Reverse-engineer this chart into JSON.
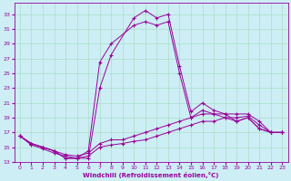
{
  "xlabel": "Windchill (Refroidissement éolien,°C)",
  "background_color": "#cdeef5",
  "grid_color": "#aaddc8",
  "line_color": "#990099",
  "x_ticks": [
    0,
    1,
    2,
    3,
    4,
    5,
    6,
    7,
    8,
    9,
    10,
    11,
    12,
    13,
    14,
    15,
    16,
    17,
    18,
    19,
    20,
    21,
    22,
    23
  ],
  "y_ticks": [
    13,
    15,
    17,
    19,
    21,
    23,
    25,
    27,
    29,
    31,
    33
  ],
  "xlim": [
    -0.5,
    23.5
  ],
  "ylim": [
    13,
    34.5
  ],
  "lines": [
    {
      "x": [
        0,
        1,
        2,
        3,
        4,
        5,
        6,
        7,
        8,
        10,
        11,
        12,
        13,
        14,
        15,
        16,
        17,
        18,
        19,
        20,
        21,
        22,
        23
      ],
      "y": [
        16.5,
        15.5,
        15.0,
        14.5,
        13.5,
        13.5,
        13.5,
        23.0,
        27.5,
        32.5,
        33.5,
        32.5,
        33.0,
        26.0,
        19.8,
        21.0,
        20.0,
        19.5,
        18.5,
        19.0,
        17.5,
        17.0,
        17.0
      ]
    },
    {
      "x": [
        0,
        1,
        2,
        3,
        4,
        5,
        6,
        7,
        8,
        10,
        11,
        12,
        13,
        14,
        15,
        16,
        17,
        18,
        19,
        20,
        21,
        22,
        23
      ],
      "y": [
        16.5,
        15.5,
        15.0,
        14.5,
        13.5,
        13.5,
        14.5,
        26.5,
        29.0,
        31.5,
        32.0,
        31.5,
        32.0,
        25.0,
        19.0,
        20.0,
        19.5,
        19.0,
        18.5,
        19.0,
        17.5,
        17.0,
        17.0
      ]
    },
    {
      "x": [
        0,
        1,
        2,
        3,
        4,
        5,
        6,
        7,
        8,
        9,
        10,
        11,
        12,
        13,
        14,
        15,
        16,
        17,
        18,
        19,
        20,
        21,
        22,
        23
      ],
      "y": [
        16.5,
        15.5,
        15.0,
        14.5,
        14.0,
        13.8,
        14.2,
        15.5,
        16.0,
        16.0,
        16.5,
        17.0,
        17.5,
        18.0,
        18.5,
        19.0,
        19.5,
        19.5,
        19.5,
        19.5,
        19.5,
        18.5,
        17.0,
        17.0
      ]
    },
    {
      "x": [
        0,
        1,
        2,
        3,
        4,
        5,
        6,
        7,
        8,
        9,
        10,
        11,
        12,
        13,
        14,
        15,
        16,
        17,
        18,
        19,
        20,
        21,
        22,
        23
      ],
      "y": [
        16.5,
        15.3,
        14.8,
        14.2,
        13.8,
        13.5,
        13.8,
        15.0,
        15.3,
        15.5,
        15.8,
        16.0,
        16.5,
        17.0,
        17.5,
        18.0,
        18.5,
        18.5,
        19.0,
        19.0,
        19.2,
        18.0,
        17.0,
        17.0
      ]
    }
  ]
}
